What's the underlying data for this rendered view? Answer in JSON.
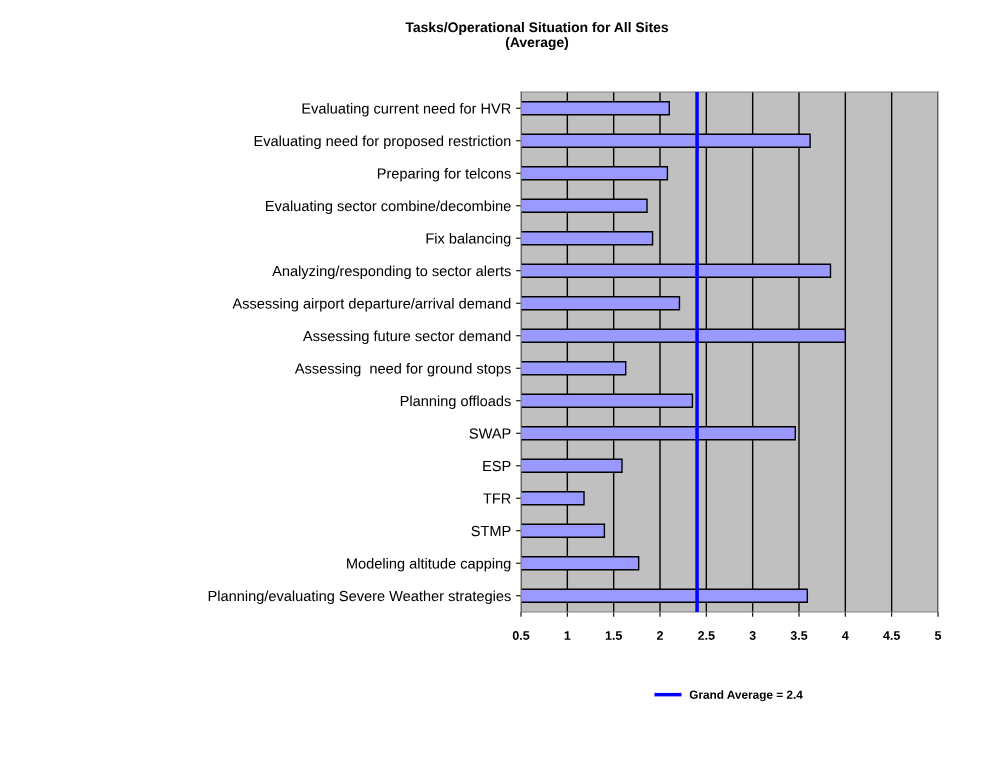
{
  "chart_data": {
    "type": "bar",
    "orientation": "horizontal",
    "title": "Tasks/Operational Situation for All Sites\n(Average)",
    "categories": [
      "Evaluating current need for HVR",
      "Evaluating need for proposed restriction",
      "Preparing for telcons",
      "Evaluating sector combine/decombine",
      "Fix balancing",
      "Analyzing/responding to sector alerts",
      "Assessing airport departure/arrival demand",
      "Assessing future sector demand",
      "Assessing  need for ground stops",
      "Planning offloads",
      "SWAP",
      "ESP",
      "TFR",
      "STMP",
      "Modeling altitude capping",
      "Planning/evaluating Severe Weather strategies"
    ],
    "values": [
      2.1,
      3.62,
      2.08,
      1.86,
      1.92,
      3.84,
      2.21,
      4.0,
      1.63,
      2.35,
      3.46,
      1.59,
      1.18,
      1.4,
      1.77,
      3.59
    ],
    "color": "#9999ff",
    "xlim": [
      0.5,
      5
    ],
    "xticks": [
      0.5,
      1,
      1.5,
      2,
      2.5,
      3,
      3.5,
      4,
      4.5,
      5
    ],
    "grid": "x",
    "ref_lines": [
      {
        "axis": "x",
        "value": 2.4,
        "label": "Grand Average = 2.4",
        "color": "#0000ff"
      }
    ],
    "legend": "bottom"
  }
}
